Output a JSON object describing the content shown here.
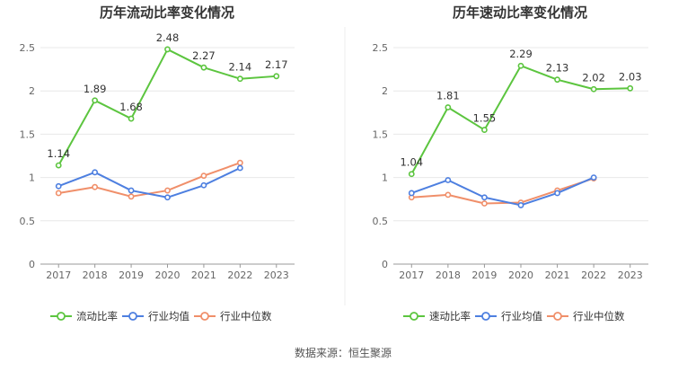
{
  "source_text": "数据来源：恒生聚源",
  "chart_data": [
    {
      "type": "line",
      "title": "历年流动比率变化情况",
      "categories": [
        "2017",
        "2018",
        "2019",
        "2020",
        "2021",
        "2022",
        "2023"
      ],
      "ylim": [
        0,
        2.5
      ],
      "yticks": [
        "0",
        "0.5",
        "1",
        "1.5",
        "2",
        "2.5"
      ],
      "grid": true,
      "legend_position": "bottom",
      "series": [
        {
          "name": "流动比率",
          "color": "#5cc53f",
          "values": [
            1.14,
            1.89,
            1.68,
            2.48,
            2.27,
            2.14,
            2.17
          ],
          "labels": [
            "1.14",
            "1.89",
            "1.68",
            "2.48",
            "2.27",
            "2.14",
            "2.17"
          ]
        },
        {
          "name": "行业均值",
          "color": "#4d7fe0",
          "values": [
            0.9,
            1.06,
            0.85,
            0.77,
            0.91,
            1.11,
            null
          ]
        },
        {
          "name": "行业中位数",
          "color": "#f08f6a",
          "values": [
            0.82,
            0.89,
            0.78,
            0.85,
            1.02,
            1.17,
            null
          ]
        }
      ]
    },
    {
      "type": "line",
      "title": "历年速动比率变化情况",
      "categories": [
        "2017",
        "2018",
        "2019",
        "2020",
        "2021",
        "2022",
        "2023"
      ],
      "ylim": [
        0,
        2.5
      ],
      "yticks": [
        "0",
        "0.5",
        "1",
        "1.5",
        "2",
        "2.5"
      ],
      "grid": true,
      "legend_position": "bottom",
      "series": [
        {
          "name": "速动比率",
          "color": "#5cc53f",
          "values": [
            1.04,
            1.81,
            1.55,
            2.29,
            2.13,
            2.02,
            2.03
          ],
          "labels": [
            "1.04",
            "1.81",
            "1.55",
            "2.29",
            "2.13",
            "2.02",
            "2.03"
          ]
        },
        {
          "name": "行业均值",
          "color": "#4d7fe0",
          "values": [
            0.82,
            0.97,
            0.77,
            0.68,
            0.82,
            1.0,
            null
          ]
        },
        {
          "name": "行业中位数",
          "color": "#f08f6a",
          "values": [
            0.77,
            0.8,
            0.7,
            0.71,
            0.85,
            0.99,
            null
          ]
        }
      ]
    }
  ]
}
